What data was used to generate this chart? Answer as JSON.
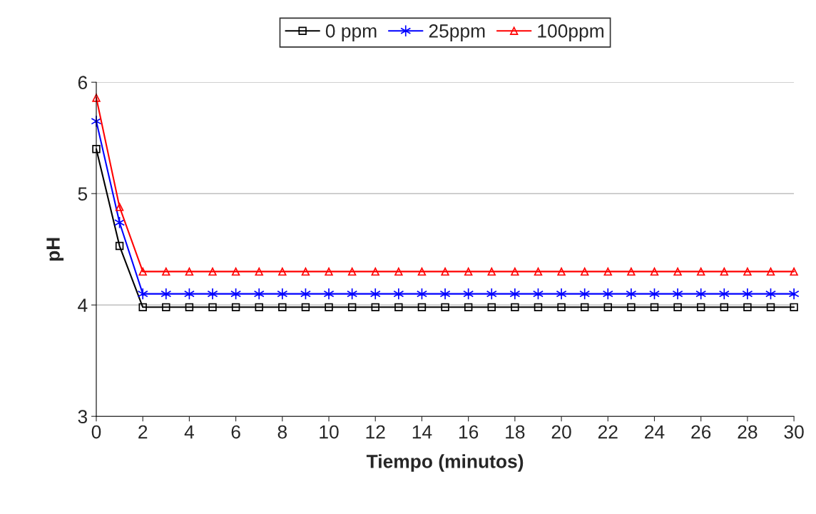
{
  "chart_data": {
    "type": "line",
    "xlabel": "Tiempo (minutos)",
    "ylabel": "pH",
    "x": [
      0,
      1,
      2,
      3,
      4,
      5,
      6,
      7,
      8,
      9,
      10,
      11,
      12,
      13,
      14,
      15,
      16,
      17,
      18,
      19,
      20,
      21,
      22,
      23,
      24,
      25,
      26,
      27,
      28,
      29,
      30
    ],
    "series": [
      {
        "name": "0 ppm",
        "color": "#000000",
        "marker": "square",
        "values": [
          5.4,
          4.53,
          3.98,
          3.98,
          3.98,
          3.98,
          3.98,
          3.98,
          3.98,
          3.98,
          3.98,
          3.98,
          3.98,
          3.98,
          3.98,
          3.98,
          3.98,
          3.98,
          3.98,
          3.98,
          3.98,
          3.98,
          3.98,
          3.98,
          3.98,
          3.98,
          3.98,
          3.98,
          3.98,
          3.98,
          3.98
        ]
      },
      {
        "name": "25ppm",
        "color": "#0000ff",
        "marker": "cross",
        "values": [
          5.65,
          4.74,
          4.1,
          4.1,
          4.1,
          4.1,
          4.1,
          4.1,
          4.1,
          4.1,
          4.1,
          4.1,
          4.1,
          4.1,
          4.1,
          4.1,
          4.1,
          4.1,
          4.1,
          4.1,
          4.1,
          4.1,
          4.1,
          4.1,
          4.1,
          4.1,
          4.1,
          4.1,
          4.1,
          4.1,
          4.1
        ]
      },
      {
        "name": "100ppm",
        "color": "#ff0000",
        "marker": "triangle",
        "values": [
          5.86,
          4.88,
          4.3,
          4.3,
          4.3,
          4.3,
          4.3,
          4.3,
          4.3,
          4.3,
          4.3,
          4.3,
          4.3,
          4.3,
          4.3,
          4.3,
          4.3,
          4.3,
          4.3,
          4.3,
          4.3,
          4.3,
          4.3,
          4.3,
          4.3,
          4.3,
          4.3,
          4.3,
          4.3,
          4.3,
          4.3
        ]
      }
    ],
    "xlim": [
      0,
      30
    ],
    "xticks": [
      0,
      2,
      4,
      6,
      8,
      10,
      12,
      14,
      16,
      18,
      20,
      22,
      24,
      26,
      28,
      30
    ],
    "ylim": [
      3,
      6
    ],
    "yticks": [
      3,
      4,
      5,
      6
    ],
    "grid": "y",
    "legend": "top",
    "line_style": "solid"
  }
}
